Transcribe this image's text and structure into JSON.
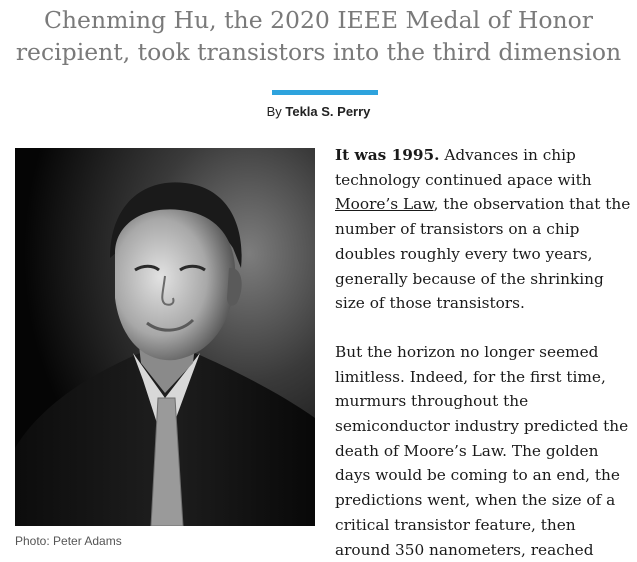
{
  "article": {
    "headline_line1": "Chenming Hu, the 2020 IEEE Medal of Honor",
    "headline_line2": "recipient, took transistors into the third dimension",
    "byline_prefix": "By",
    "author": "Tekla S. Perry",
    "accent_color": "#2ea3dd",
    "photo_caption": "Photo: Peter Adams",
    "paragraph1": {
      "lead": "It was 1995.",
      "text_before_link": " Advances in chip technology continued apace with ",
      "link_text": "Moore’s Law",
      "text_after_link": ", the observation that the number of transistors on a chip doubles roughly every two years, generally because of the shrinking size of those transistors."
    },
    "paragraph2": "But the horizon no longer seemed limitless. Indeed, for the first time, murmurs throughout the semiconductor industry predicted the death of Moore’s Law. The golden days would be coming to an end, the predictions went, when the size of a critical transistor feature, then around 350 nanometers, reached"
  }
}
